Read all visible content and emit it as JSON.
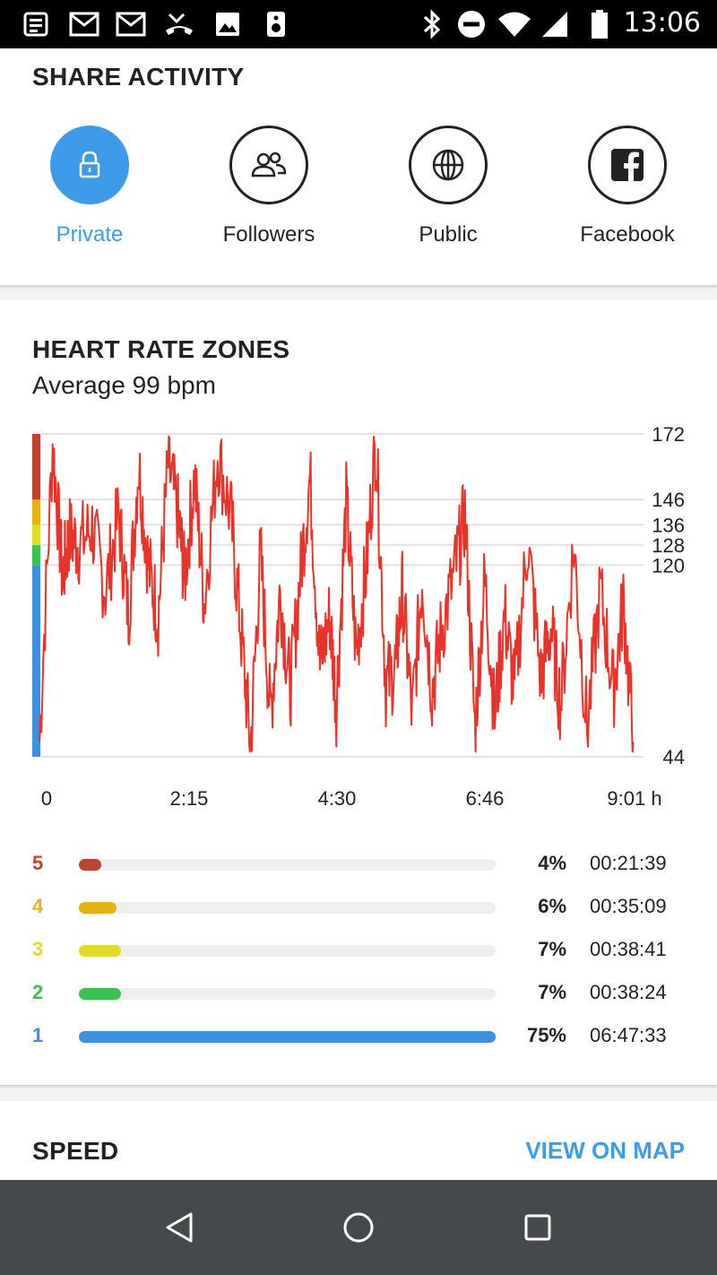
{
  "status_bar": {
    "time": "13:06",
    "left_icons": [
      "news-icon",
      "gmail-icon",
      "gmail-icon",
      "missed-call-icon",
      "image-icon",
      "speaker-icon"
    ],
    "right_icons": [
      "bluetooth-icon",
      "do-not-disturb-icon",
      "wifi-icon",
      "signal-icon",
      "battery-icon"
    ]
  },
  "share": {
    "title": "SHARE ACTIVITY",
    "options": [
      {
        "label": "Private",
        "icon": "lock-icon",
        "selected": true
      },
      {
        "label": "Followers",
        "icon": "people-icon",
        "selected": false
      },
      {
        "label": "Public",
        "icon": "globe-icon",
        "selected": false
      },
      {
        "label": "Facebook",
        "icon": "facebook-icon",
        "selected": false
      }
    ]
  },
  "heart_rate": {
    "title": "HEART RATE ZONES",
    "average": "Average 99 bpm",
    "zones": [
      {
        "zone": "5",
        "percent": "4%",
        "fraction": 0.04,
        "time": "00:21:39",
        "color": "#c0432f"
      },
      {
        "zone": "4",
        "percent": "6%",
        "fraction": 0.06,
        "time": "00:35:09",
        "color": "#e6b214"
      },
      {
        "zone": "3",
        "percent": "7%",
        "fraction": 0.07,
        "time": "00:38:41",
        "color": "#e3da25"
      },
      {
        "zone": "2",
        "percent": "7%",
        "fraction": 0.07,
        "time": "00:38:24",
        "color": "#3cc251"
      },
      {
        "zone": "1",
        "percent": "75%",
        "fraction": 0.75,
        "time": "06:47:33",
        "color": "#3d8fdf"
      }
    ]
  },
  "chart_data": {
    "type": "line",
    "x_tick_labels": [
      "0",
      "2:15",
      "4:30",
      "6:46",
      "9:01 h"
    ],
    "y_tick_labels": [
      "172",
      "146",
      "136",
      "128",
      "120",
      "44"
    ],
    "y_ticks": [
      172,
      146,
      136,
      128,
      120,
      44
    ],
    "ylim": [
      44,
      172
    ],
    "xlim": [
      0,
      9.02
    ],
    "grid": true,
    "series": [
      {
        "color": "#e8332a",
        "x": [
          0,
          0.2,
          0.35,
          0.45,
          0.6,
          0.8,
          1.0,
          1.2,
          1.35,
          1.5,
          1.65,
          1.8,
          1.95,
          2.1,
          2.2,
          2.35,
          2.5,
          2.7,
          2.9,
          3.05,
          3.2,
          3.35,
          3.5,
          3.65,
          3.8,
          3.95,
          4.1,
          4.25,
          4.4,
          4.5,
          4.65,
          4.8,
          4.95,
          5.1,
          5.25,
          5.4,
          5.5,
          5.65,
          5.8,
          5.95,
          6.1,
          6.3,
          6.45,
          6.6,
          6.75,
          6.9,
          7.05,
          7.2,
          7.4,
          7.6,
          7.75,
          7.9,
          8.1,
          8.3,
          8.5,
          8.7,
          8.85,
          9.0
        ],
        "y": [
          50,
          168,
          115,
          132,
          128,
          135,
          110,
          140,
          100,
          160,
          120,
          100,
          160,
          140,
          115,
          155,
          105,
          165,
          140,
          95,
          48,
          125,
          60,
          110,
          70,
          115,
          155,
          80,
          100,
          65,
          145,
          85,
          118,
          170,
          72,
          80,
          110,
          60,
          115,
          70,
          95,
          118,
          140,
          55,
          115,
          60,
          100,
          70,
          130,
          75,
          95,
          65,
          128,
          55,
          110,
          70,
          105,
          50
        ]
      }
    ]
  },
  "speed": {
    "title": "SPEED",
    "view_on_map": "VIEW ON MAP"
  },
  "nav": {
    "buttons": [
      "back-icon",
      "home-icon",
      "recents-icon"
    ]
  }
}
